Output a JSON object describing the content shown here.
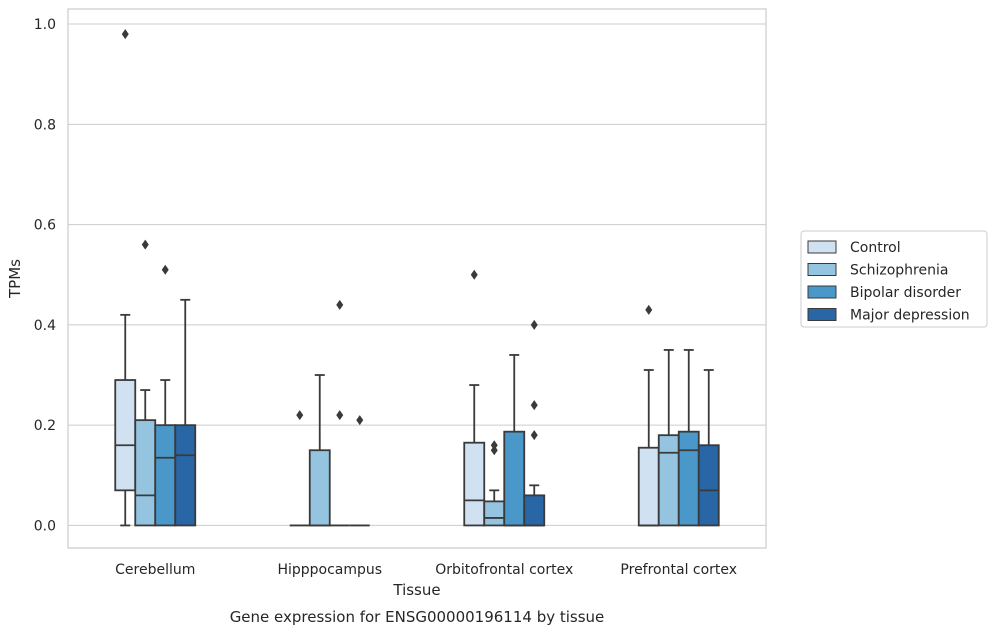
{
  "caption": "Gene expression for ENSG00000196114 by tissue",
  "chart_data": {
    "type": "box",
    "xlabel": "Tissue",
    "ylabel": "TPMs",
    "ylim": [
      -0.045,
      1.03
    ],
    "yticks": [
      "0.0",
      "0.2",
      "0.4",
      "0.6",
      "0.8",
      "1.0"
    ],
    "grid": "horizontal",
    "legend_placement": "right",
    "categories": [
      "Cerebellum",
      "Hipppocampus",
      "Orbitofrontal cortex",
      "Prefrontal cortex"
    ],
    "series": [
      {
        "name": "Control",
        "color": "#d0e1f2",
        "boxes": [
          {
            "min": 0.0,
            "q1": 0.07,
            "median": 0.16,
            "q3": 0.29,
            "max": 0.42,
            "outliers": [
              0.98
            ]
          },
          {
            "min": 0.0,
            "q1": 0.0,
            "median": 0.0,
            "q3": 0.0,
            "max": 0.0,
            "outliers": [
              0.22
            ]
          },
          {
            "min": 0.0,
            "q1": 0.0,
            "median": 0.05,
            "q3": 0.165,
            "max": 0.28,
            "outliers": [
              0.5
            ]
          },
          {
            "min": 0.0,
            "q1": 0.0,
            "median": 0.0,
            "q3": 0.155,
            "max": 0.31,
            "outliers": [
              0.43
            ]
          }
        ]
      },
      {
        "name": "Schizophrenia",
        "color": "#94c4df",
        "boxes": [
          {
            "min": 0.0,
            "q1": 0.0,
            "median": 0.06,
            "q3": 0.21,
            "max": 0.27,
            "outliers": [
              0.56
            ]
          },
          {
            "min": 0.0,
            "q1": 0.0,
            "median": 0.0,
            "q3": 0.15,
            "max": 0.3,
            "outliers": []
          },
          {
            "min": 0.0,
            "q1": 0.0,
            "median": 0.015,
            "q3": 0.048,
            "max": 0.07,
            "outliers": [
              0.15,
              0.16
            ]
          },
          {
            "min": 0.0,
            "q1": 0.0,
            "median": 0.145,
            "q3": 0.18,
            "max": 0.35,
            "outliers": []
          }
        ]
      },
      {
        "name": "Bipolar disorder",
        "color": "#4a98c9",
        "boxes": [
          {
            "min": 0.0,
            "q1": 0.0,
            "median": 0.135,
            "q3": 0.2,
            "max": 0.29,
            "outliers": [
              0.51
            ]
          },
          {
            "min": 0.0,
            "q1": 0.0,
            "median": 0.0,
            "q3": 0.0,
            "max": 0.0,
            "outliers": [
              0.44,
              0.22
            ]
          },
          {
            "min": 0.0,
            "q1": 0.0,
            "median": 0.0,
            "q3": 0.187,
            "max": 0.34,
            "outliers": []
          },
          {
            "min": 0.0,
            "q1": 0.0,
            "median": 0.15,
            "q3": 0.187,
            "max": 0.35,
            "outliers": []
          }
        ]
      },
      {
        "name": "Major depression",
        "color": "#2866a5",
        "boxes": [
          {
            "min": 0.0,
            "q1": 0.0,
            "median": 0.14,
            "q3": 0.2,
            "max": 0.45,
            "outliers": []
          },
          {
            "min": 0.0,
            "q1": 0.0,
            "median": 0.0,
            "q3": 0.0,
            "max": 0.0,
            "outliers": [
              0.21
            ]
          },
          {
            "min": 0.0,
            "q1": 0.0,
            "median": 0.0,
            "q3": 0.06,
            "max": 0.08,
            "outliers": [
              0.24,
              0.18,
              0.4
            ]
          },
          {
            "min": 0.0,
            "q1": 0.0,
            "median": 0.07,
            "q3": 0.16,
            "max": 0.31,
            "outliers": []
          }
        ]
      }
    ]
  }
}
